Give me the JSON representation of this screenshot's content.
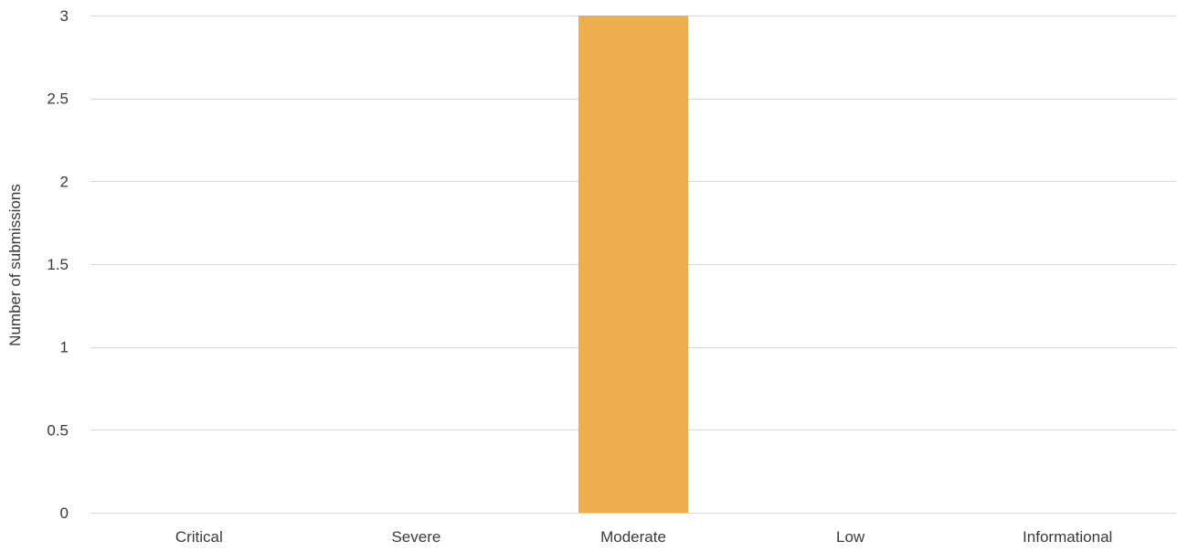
{
  "chart_data": {
    "type": "bar",
    "title": "",
    "xlabel": "",
    "ylabel": "Number of submissions",
    "categories": [
      "Critical",
      "Severe",
      "Moderate",
      "Low",
      "Informational"
    ],
    "values": [
      0,
      0,
      3,
      0,
      0
    ],
    "ylim": [
      0,
      3
    ],
    "yticks": [
      0,
      0.5,
      1,
      1.5,
      2,
      2.5,
      3
    ],
    "ytick_labels": [
      "0",
      "0.5",
      "1",
      "1.5",
      "2",
      "2.5",
      "3"
    ],
    "grid": true,
    "legend": "none",
    "bar_color": "#EEAD4F",
    "grid_color": "#d6d6d6",
    "text_color": "#3a3a3a"
  }
}
